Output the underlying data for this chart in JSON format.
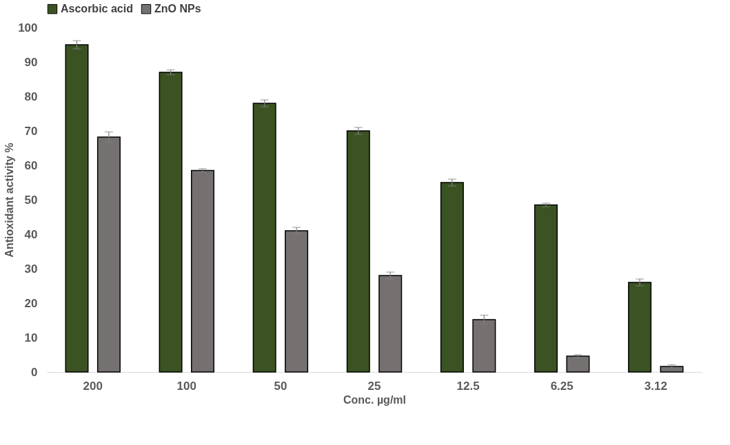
{
  "chart_data": {
    "type": "bar",
    "xlabel": "Conc. µg/ml",
    "ylabel": "Antioxidant activity %",
    "categories": [
      "200",
      "100",
      "50",
      "25",
      "12.5",
      "6.25",
      "3.12"
    ],
    "series": [
      {
        "name": "Ascorbic acid",
        "color": "#3b5323",
        "values": [
          95,
          87,
          78,
          70,
          55,
          48.5,
          26
        ],
        "errors": [
          1.2,
          0.7,
          1.0,
          1.0,
          1.0,
          0.5,
          1.0
        ]
      },
      {
        "name": "ZnO NPs",
        "color": "#767171",
        "values": [
          68.2,
          58.5,
          41,
          28,
          15.2,
          4.6,
          1.6
        ],
        "errors": [
          1.5,
          0.5,
          1.0,
          1.0,
          1.3,
          0.4,
          0.5
        ]
      }
    ],
    "ylim": [
      0,
      100
    ],
    "yticks": [
      0,
      10,
      20,
      30,
      40,
      50,
      60,
      70,
      80,
      90,
      100
    ],
    "grid": false,
    "legend": "top"
  }
}
